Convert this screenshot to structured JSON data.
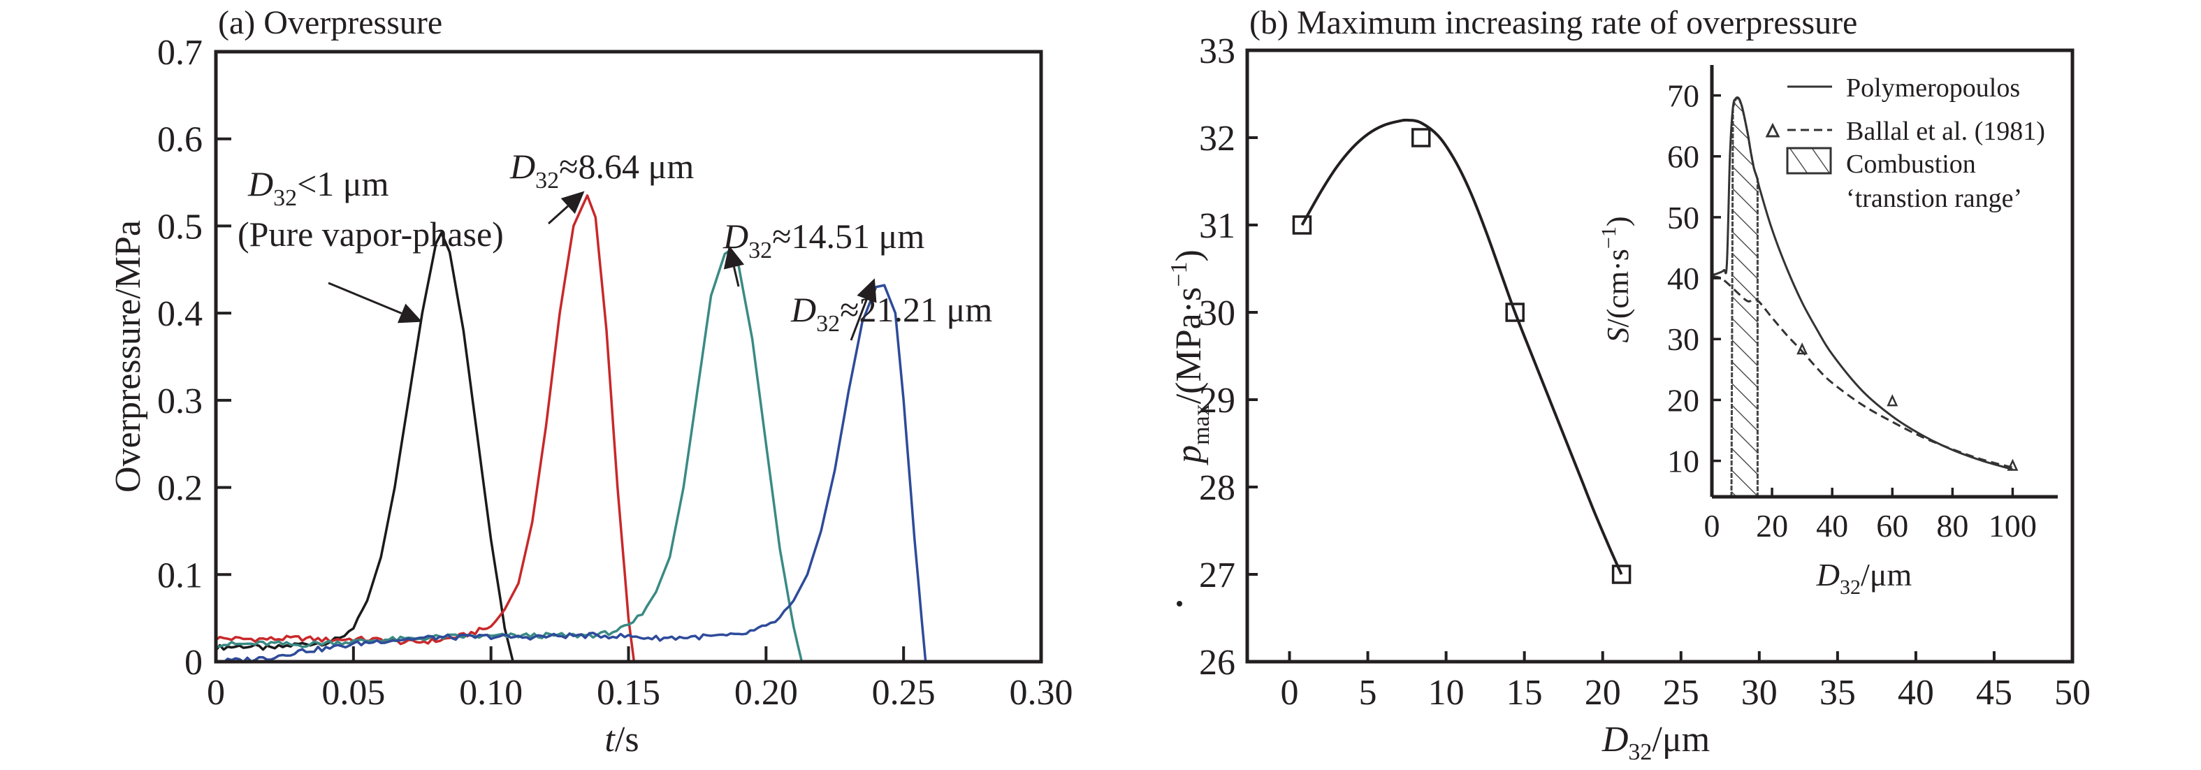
{
  "chart_data": [
    {
      "type": "line",
      "panel": "a",
      "title": "(a) Overpressure",
      "xlabel": "t/s",
      "xlabel_italic_part": "t",
      "xlabel_rest": "/s",
      "ylabel": "Overpressure/MPa",
      "xlim": [
        0,
        0.3
      ],
      "ylim": [
        0,
        0.7
      ],
      "xticks": [
        0,
        0.05,
        0.1,
        0.15,
        0.2,
        0.25,
        0.3
      ],
      "xtick_labels": [
        "0",
        "0.05",
        "0.10",
        "0.15",
        "0.20",
        "0.25",
        "0.30"
      ],
      "yticks": [
        0,
        0.1,
        0.2,
        0.3,
        0.4,
        0.5,
        0.6,
        0.7
      ],
      "ytick_labels": [
        "0",
        "0.1",
        "0.2",
        "0.3",
        "0.4",
        "0.5",
        "0.6",
        "0.7"
      ],
      "grid": false,
      "series": [
        {
          "name": "D32<1 μm (Pure vapor-phase)",
          "color": "#1a1a1a",
          "baseline": 0.017,
          "peak_t": 0.082,
          "peak_value": 0.492,
          "onset_t": 0.045,
          "end_t": 0.108,
          "x": [
            0,
            0.01,
            0.02,
            0.03,
            0.04,
            0.045,
            0.05,
            0.055,
            0.06,
            0.065,
            0.07,
            0.075,
            0.08,
            0.082,
            0.085,
            0.09,
            0.095,
            0.1,
            0.105,
            0.108
          ],
          "y": [
            0.016,
            0.018,
            0.015,
            0.02,
            0.022,
            0.026,
            0.04,
            0.07,
            0.12,
            0.2,
            0.3,
            0.4,
            0.48,
            0.492,
            0.47,
            0.38,
            0.26,
            0.14,
            0.04,
            0
          ]
        },
        {
          "name": "D32≈8.64 μm",
          "color": "#c8282a",
          "baseline": 0.026,
          "peak_t": 0.135,
          "peak_value": 0.535,
          "onset_t": 0.1,
          "end_t": 0.152,
          "x": [
            0,
            0.01,
            0.02,
            0.03,
            0.04,
            0.05,
            0.06,
            0.07,
            0.08,
            0.09,
            0.1,
            0.105,
            0.11,
            0.115,
            0.12,
            0.125,
            0.13,
            0.135,
            0.138,
            0.142,
            0.146,
            0.15,
            0.152
          ],
          "y": [
            0.027,
            0.026,
            0.026,
            0.027,
            0.025,
            0.026,
            0.025,
            0.022,
            0.024,
            0.03,
            0.04,
            0.06,
            0.09,
            0.16,
            0.27,
            0.4,
            0.5,
            0.535,
            0.51,
            0.38,
            0.2,
            0.05,
            0
          ]
        },
        {
          "name": "D32≈14.51 μm",
          "color": "#3a8a84",
          "baseline": 0.028,
          "peak_t": 0.187,
          "peak_value": 0.472,
          "onset_t": 0.15,
          "end_t": 0.213,
          "x": [
            0,
            0.01,
            0.02,
            0.03,
            0.04,
            0.05,
            0.06,
            0.07,
            0.08,
            0.09,
            0.1,
            0.11,
            0.12,
            0.13,
            0.14,
            0.15,
            0.155,
            0.16,
            0.165,
            0.17,
            0.175,
            0.18,
            0.185,
            0.187,
            0.19,
            0.195,
            0.2,
            0.205,
            0.21,
            0.213
          ],
          "y": [
            0.02,
            0.02,
            0.021,
            0.019,
            0.022,
            0.023,
            0.025,
            0.026,
            0.028,
            0.029,
            0.029,
            0.03,
            0.03,
            0.03,
            0.031,
            0.04,
            0.055,
            0.08,
            0.12,
            0.2,
            0.31,
            0.42,
            0.468,
            0.472,
            0.455,
            0.37,
            0.25,
            0.13,
            0.04,
            0
          ]
        },
        {
          "name": "D32≈21.21 μm",
          "color": "#2e4b9a",
          "baseline": 0.028,
          "peak_t": 0.24,
          "peak_value": 0.432,
          "onset_t": 0.19,
          "end_t": 0.258,
          "x": [
            0,
            0.01,
            0.02,
            0.03,
            0.04,
            0.05,
            0.06,
            0.07,
            0.08,
            0.09,
            0.1,
            0.11,
            0.12,
            0.13,
            0.14,
            0.15,
            0.16,
            0.17,
            0.18,
            0.19,
            0.2,
            0.205,
            0.21,
            0.215,
            0.22,
            0.225,
            0.23,
            0.235,
            0.24,
            0.243,
            0.247,
            0.25,
            0.254,
            0.258
          ],
          "y": [
            0.0,
            0.002,
            0.005,
            0.012,
            0.015,
            0.02,
            0.024,
            0.026,
            0.028,
            0.028,
            0.029,
            0.028,
            0.029,
            0.03,
            0.03,
            0.029,
            0.027,
            0.028,
            0.029,
            0.03,
            0.04,
            0.05,
            0.07,
            0.1,
            0.15,
            0.22,
            0.31,
            0.39,
            0.43,
            0.432,
            0.4,
            0.3,
            0.14,
            0
          ]
        }
      ],
      "annotations": [
        {
          "id": "ann-1",
          "sub": "32",
          "main": "D",
          "rest": "<1 μm",
          "line2": "(Pure vapor-phase)",
          "target": [
            0.075,
            0.38
          ]
        },
        {
          "id": "ann-2",
          "sub": "32",
          "main": "D",
          "rest": "≈8.64 μm",
          "target": [
            0.134,
            0.535
          ]
        },
        {
          "id": "ann-3",
          "sub": "32",
          "main": "D",
          "rest": "≈14.51 μm",
          "target": [
            0.186,
            0.475
          ]
        },
        {
          "id": "ann-4",
          "sub": "32",
          "main": "D",
          "rest": "≈21.21 μm",
          "target": [
            0.239,
            0.435
          ]
        }
      ]
    },
    {
      "type": "line",
      "panel": "b",
      "title": "(b) Maximum increasing rate of overpressure",
      "xlabel": "D32/μm",
      "ylabel": "ṗmax/(MPa·s−1)",
      "ylabel_parts": {
        "symbol": "p",
        "sub": "max",
        "unit": "/(MPa·s",
        "sup": "−1",
        "close": ")"
      },
      "xlabel_parts": {
        "symbol": "D",
        "sub": "32",
        "unit": "/μm"
      },
      "xlim": [
        -2.7,
        50
      ],
      "ylim": [
        26,
        33
      ],
      "xticks": [
        0,
        5,
        10,
        15,
        20,
        25,
        30,
        35,
        40,
        45,
        50
      ],
      "xtick_labels": [
        "0",
        "5",
        "10",
        "15",
        "20",
        "25",
        "30",
        "35",
        "40",
        "45",
        "50"
      ],
      "yticks": [
        26,
        27,
        28,
        29,
        30,
        31,
        32,
        33
      ],
      "ytick_labels": [
        "26",
        "27",
        "28",
        "29",
        "30",
        "31",
        "32",
        "33"
      ],
      "grid": false,
      "markers": {
        "shape": "open-square",
        "x": [
          0.8,
          8.4,
          14.4,
          21.2
        ],
        "y": [
          31.0,
          32.0,
          30.0,
          27.0
        ]
      },
      "fit_curve": {
        "x": [
          0.8,
          2,
          3,
          4,
          5,
          6,
          7,
          7.6,
          8.4,
          9.5,
          10.5,
          11.5,
          12.5,
          13.5,
          14.4,
          15.5,
          16.5,
          17.5,
          18.5,
          19.5,
          20.5,
          21.2
        ],
        "y": [
          31.0,
          31.38,
          31.66,
          31.88,
          32.04,
          32.14,
          32.19,
          32.2,
          32.17,
          32.02,
          31.76,
          31.4,
          30.95,
          30.45,
          30.0,
          29.5,
          29.05,
          28.6,
          28.15,
          27.7,
          27.28,
          27.0
        ]
      },
      "inset": {
        "xlabel_parts": {
          "symbol": "D",
          "sub": "32",
          "unit": "/μm"
        },
        "ylabel_parts": {
          "symbol": "S",
          "unit": "/(cm·s",
          "sup": "−1",
          "close": ")"
        },
        "xlim": [
          0,
          115
        ],
        "ylim": [
          4.1,
          75
        ],
        "xticks": [
          0,
          20,
          40,
          60,
          80,
          100
        ],
        "xtick_labels": [
          "0",
          "20",
          "40",
          "60",
          "80",
          "100"
        ],
        "yticks": [
          10,
          20,
          30,
          40,
          50,
          60,
          70
        ],
        "ytick_labels": [
          "10",
          "20",
          "30",
          "40",
          "50",
          "60",
          "70"
        ],
        "legend": {
          "position": "top-right",
          "entries": [
            {
              "label": "Polymeropoulos",
              "style": "solid"
            },
            {
              "label": "Ballal et al. (1981)",
              "style": "dashed-triangle"
            },
            {
              "label": "Combustion",
              "label2": "‘transtion range’",
              "style": "hatched-box"
            }
          ]
        },
        "transition_range": [
          6.5,
          15.2
        ],
        "series": [
          {
            "name": "Polymeropoulos",
            "style": "solid",
            "x": [
              0,
              2,
              4,
              5,
              6,
              7,
              8,
              9,
              10,
              11,
              12,
              13,
              14,
              15,
              16,
              20,
              25,
              30,
              35,
              40,
              50,
              60,
              70,
              80,
              90,
              100
            ],
            "y": [
              40.5,
              40.8,
              41.3,
              42.5,
              60,
              68,
              69.5,
              69.5,
              68.2,
              66,
              63.5,
              60.5,
              58,
              56.5,
              54.5,
              48,
              41.5,
              36,
              31.5,
              27.5,
              21.5,
              17.3,
              14.2,
              11.8,
              10.0,
              8.6
            ]
          },
          {
            "name": "Ballal et al. (1981)",
            "style": "dashed",
            "x": [
              0,
              3,
              6,
              9,
              12,
              15,
              20,
              25,
              30,
              35,
              40,
              50,
              60,
              70,
              80,
              90,
              100
            ],
            "y": [
              40.3,
              40,
              38.8,
              37.4,
              36.2,
              36.4,
              33.5,
              30.6,
              28,
              25.2,
              22.8,
              19.2,
              16.4,
              13.9,
              11.9,
              10.2,
              8.9
            ]
          }
        ],
        "ballal_points": {
          "x": [
            30,
            60,
            100
          ],
          "y": [
            28.3,
            19.8,
            9.2
          ]
        }
      }
    }
  ]
}
